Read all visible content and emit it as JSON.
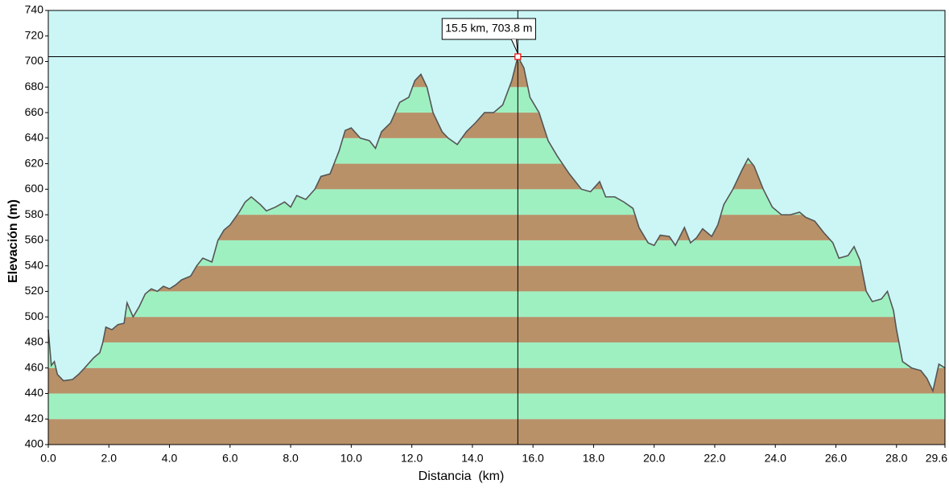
{
  "chart_data": {
    "type": "area",
    "x_label": "Distancia  (km)",
    "y_label": "Elevación (m)",
    "x": [
      0,
      0.1,
      0.2,
      0.3,
      0.5,
      0.8,
      1.0,
      1.2,
      1.5,
      1.7,
      1.8,
      1.9,
      2.1,
      2.3,
      2.5,
      2.6,
      2.8,
      3.0,
      3.2,
      3.4,
      3.6,
      3.8,
      4.0,
      4.2,
      4.4,
      4.7,
      4.9,
      5.1,
      5.4,
      5.6,
      5.8,
      6.0,
      6.3,
      6.5,
      6.7,
      7.0,
      7.2,
      7.5,
      7.8,
      8.0,
      8.2,
      8.5,
      8.8,
      9.0,
      9.3,
      9.6,
      9.8,
      10.0,
      10.3,
      10.6,
      10.8,
      11.0,
      11.3,
      11.6,
      11.9,
      12.1,
      12.3,
      12.5,
      12.7,
      13.0,
      13.2,
      13.5,
      13.8,
      14.1,
      14.4,
      14.7,
      15.0,
      15.3,
      15.5,
      15.7,
      15.9,
      16.2,
      16.5,
      16.8,
      17.2,
      17.6,
      17.9,
      18.2,
      18.4,
      18.7,
      19.0,
      19.3,
      19.5,
      19.8,
      20.0,
      20.2,
      20.5,
      20.7,
      21.0,
      21.2,
      21.4,
      21.6,
      21.9,
      22.1,
      22.3,
      22.6,
      22.9,
      23.1,
      23.3,
      23.6,
      23.9,
      24.2,
      24.5,
      24.8,
      25.0,
      25.3,
      25.6,
      25.9,
      26.1,
      26.4,
      26.6,
      26.8,
      27.0,
      27.2,
      27.5,
      27.7,
      27.9,
      28.0,
      28.2,
      28.5,
      28.8,
      29.0,
      29.2,
      29.4,
      29.6
    ],
    "values": [
      490,
      462,
      465,
      455,
      450,
      451,
      455,
      460,
      468,
      472,
      480,
      492,
      490,
      494,
      495,
      511,
      500,
      508,
      518,
      522,
      520,
      524,
      522,
      525,
      529,
      532,
      540,
      546,
      543,
      560,
      568,
      572,
      582,
      590,
      594,
      588,
      583,
      586,
      590,
      586,
      595,
      592,
      600,
      610,
      612,
      630,
      646,
      648,
      640,
      638,
      632,
      645,
      652,
      668,
      672,
      685,
      690,
      680,
      660,
      645,
      640,
      635,
      645,
      652,
      660,
      660,
      666,
      685,
      703.8,
      695,
      672,
      660,
      638,
      626,
      612,
      600,
      598,
      606,
      594,
      594,
      590,
      585,
      570,
      558,
      556,
      564,
      563,
      556,
      570,
      558,
      562,
      569,
      563,
      572,
      588,
      600,
      615,
      624,
      618,
      600,
      586,
      580,
      580,
      582,
      578,
      575,
      566,
      558,
      546,
      548,
      555,
      544,
      520,
      512,
      514,
      520,
      505,
      490,
      465,
      460,
      458,
      452,
      442,
      463,
      460
    ],
    "line_color": "#555555",
    "band_colors": [
      "#b99169",
      "#9ff0c1"
    ],
    "background": "#ccf6f6",
    "xlim": [
      0,
      29.6
    ],
    "ylim": [
      400,
      740
    ],
    "xticks": [
      {
        "value": 0,
        "label": "0.0"
      },
      {
        "value": 2,
        "label": "2.0"
      },
      {
        "value": 4,
        "label": "4.0"
      },
      {
        "value": 6,
        "label": "6.0"
      },
      {
        "value": 8,
        "label": "8.0"
      },
      {
        "value": 10,
        "label": "10.0"
      },
      {
        "value": 12,
        "label": "12.0"
      },
      {
        "value": 14,
        "label": "14.0"
      },
      {
        "value": 16,
        "label": "16.0"
      },
      {
        "value": 18,
        "label": "18.0"
      },
      {
        "value": 20,
        "label": "20.0"
      },
      {
        "value": 22,
        "label": "22.0"
      },
      {
        "value": 24,
        "label": "24.0"
      },
      {
        "value": 26,
        "label": "26.0"
      },
      {
        "value": 28,
        "label": "28.0"
      },
      29.6
    ],
    "yticks": [
      400,
      420,
      440,
      460,
      480,
      500,
      520,
      540,
      560,
      580,
      600,
      620,
      640,
      660,
      680,
      700,
      720,
      740
    ],
    "annotation": {
      "x": 15.5,
      "y": 703.8,
      "label": "15.5 km, 703.8 m",
      "color": "#ff0000"
    }
  }
}
